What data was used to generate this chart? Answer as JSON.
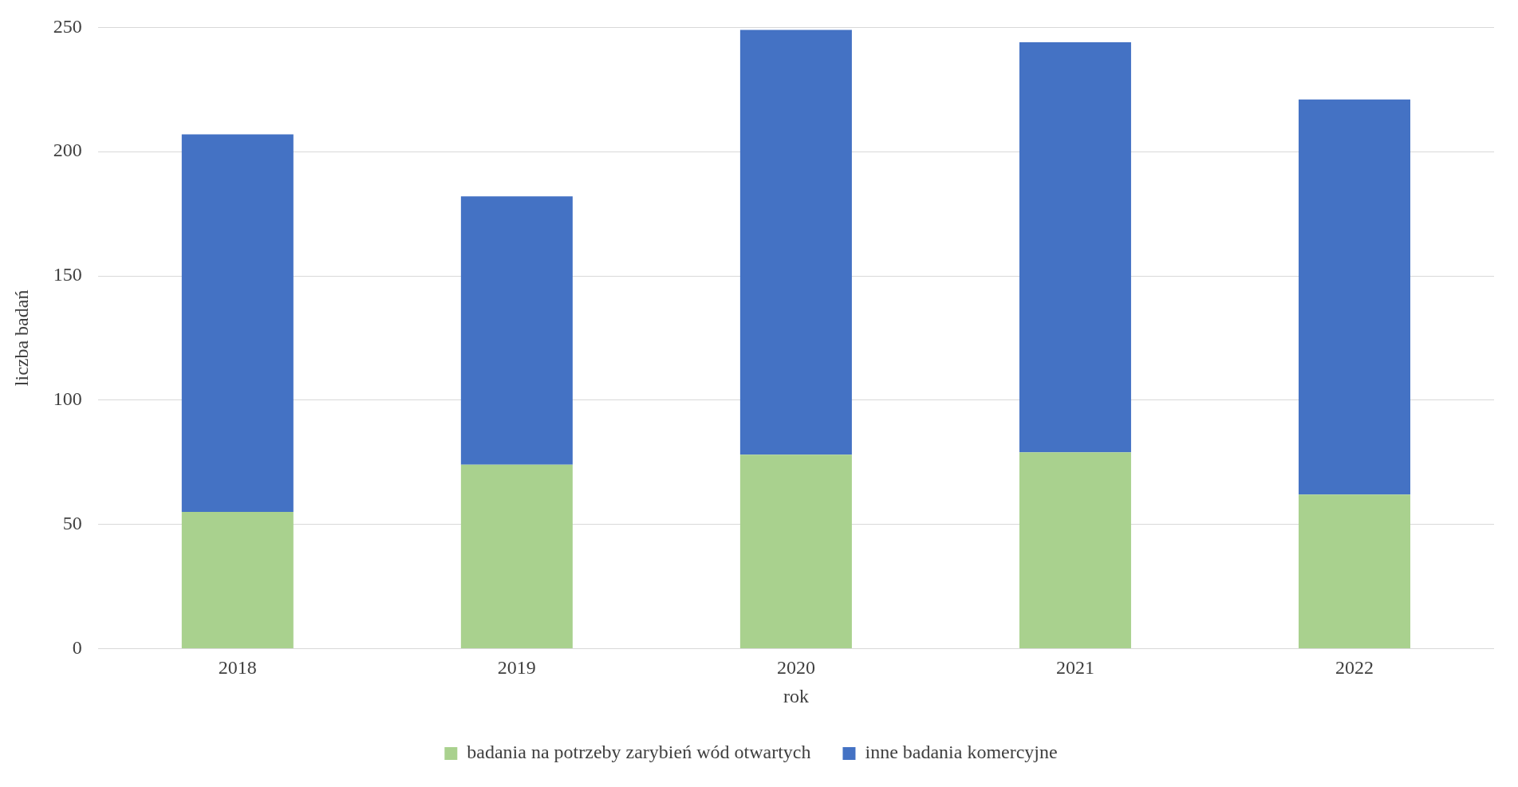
{
  "chart_data": {
    "type": "bar",
    "stacked": true,
    "xlabel": "rok",
    "ylabel": "liczba badań",
    "categories": [
      "2018",
      "2019",
      "2020",
      "2021",
      "2022"
    ],
    "series": [
      {
        "name": "badania na potrzeby zarybień wód otwartych",
        "color": "#a9d18e",
        "values": [
          55,
          74,
          78,
          79,
          62
        ]
      },
      {
        "name": "inne badania komercyjne",
        "color": "#4472c4",
        "values": [
          152,
          108,
          171,
          165,
          159
        ]
      }
    ],
    "ylim": [
      0,
      250
    ],
    "yticks": [
      0,
      50,
      100,
      150,
      200,
      250
    ],
    "grid": "y",
    "legend": "bottom"
  }
}
